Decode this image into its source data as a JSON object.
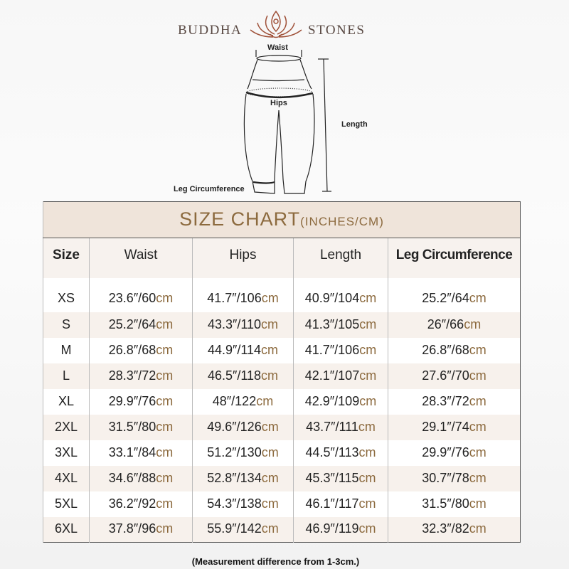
{
  "brand": {
    "left": "BUDDHA",
    "right": "STONES",
    "logo": "lotus-meditation-logo"
  },
  "diagram": {
    "waist": "Waist",
    "hips": "Hips",
    "length": "Length",
    "leg": "Leg Circumference"
  },
  "table": {
    "title": "SIZE CHART",
    "title_unit": "(INCHES/CM)",
    "headers": [
      "Size",
      "Waist",
      "Hips",
      "Length",
      "Leg Circumference"
    ],
    "unit_color": "#8c6a3e",
    "rows": [
      {
        "size": "XS",
        "cells": [
          [
            "23.6″/60",
            "cm"
          ],
          [
            "41.7″/106",
            "cm"
          ],
          [
            "40.9″/104",
            "cm"
          ],
          [
            "25.2″/64",
            "cm"
          ]
        ]
      },
      {
        "size": "S",
        "cells": [
          [
            "25.2″/64",
            "cm"
          ],
          [
            "43.3″/110",
            "cm"
          ],
          [
            "41.3″/105",
            "cm"
          ],
          [
            "26″/66",
            "cm"
          ]
        ]
      },
      {
        "size": "M",
        "cells": [
          [
            "26.8″/68",
            "cm"
          ],
          [
            "44.9″/114",
            "cm"
          ],
          [
            "41.7″/106",
            "cm"
          ],
          [
            "26.8″/68",
            "cm"
          ]
        ]
      },
      {
        "size": "L",
        "cells": [
          [
            "28.3″/72",
            "cm"
          ],
          [
            "46.5″/118",
            "cm"
          ],
          [
            "42.1″/107",
            "cm"
          ],
          [
            "27.6″/70",
            "cm"
          ]
        ]
      },
      {
        "size": "XL",
        "cells": [
          [
            "29.9″/76",
            "cm"
          ],
          [
            "48″/122",
            "cm"
          ],
          [
            "42.9″/109",
            "cm"
          ],
          [
            "28.3″/72",
            "cm"
          ]
        ]
      },
      {
        "size": "2XL",
        "cells": [
          [
            "31.5″/80",
            "cm"
          ],
          [
            "49.6″/126",
            "cm"
          ],
          [
            "43.7″/111",
            "cm"
          ],
          [
            "29.1″/74",
            "cm"
          ]
        ]
      },
      {
        "size": "3XL",
        "cells": [
          [
            "33.1″/84",
            "cm"
          ],
          [
            "51.2″/130",
            "cm"
          ],
          [
            "44.5″/113",
            "cm"
          ],
          [
            "29.9″/76",
            "cm"
          ]
        ]
      },
      {
        "size": "4XL",
        "cells": [
          [
            "34.6″/88",
            "cm"
          ],
          [
            "52.8″/134",
            "cm"
          ],
          [
            "45.3″/115",
            "cm"
          ],
          [
            "30.7″/78",
            "cm"
          ]
        ]
      },
      {
        "size": "5XL",
        "cells": [
          [
            "36.2″/92",
            "cm"
          ],
          [
            "54.3″/138",
            "cm"
          ],
          [
            "46.1″/117",
            "cm"
          ],
          [
            "31.5″/80",
            "cm"
          ]
        ]
      },
      {
        "size": "6XL",
        "cells": [
          [
            "37.8″/96",
            "cm"
          ],
          [
            "55.9″/142",
            "cm"
          ],
          [
            "46.9″/119",
            "cm"
          ],
          [
            "32.3″/82",
            "cm"
          ]
        ]
      }
    ]
  },
  "note": "(Measurement difference from 1-3cm.)"
}
